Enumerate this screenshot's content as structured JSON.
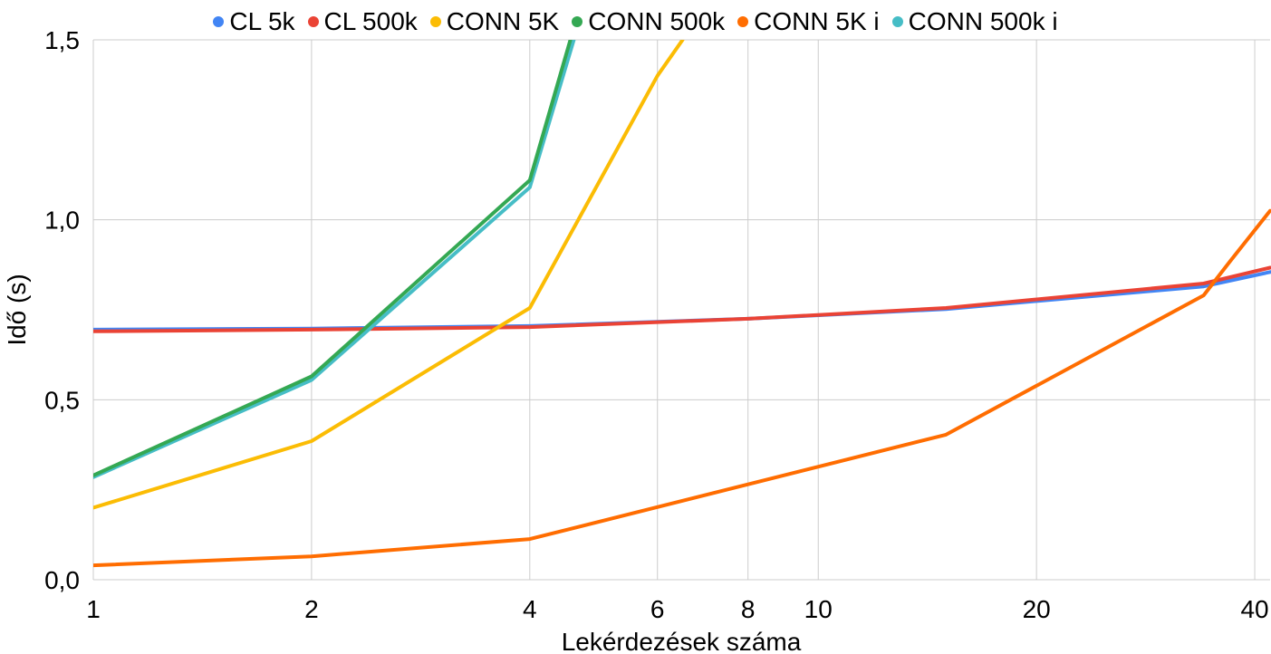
{
  "chart_data": {
    "type": "line",
    "title": "",
    "xlabel": "Lekérdezések száma",
    "ylabel": "Idő (s)",
    "xscale": "log",
    "xlim": [
      1,
      42
    ],
    "ylim": [
      0,
      1.5
    ],
    "grid": true,
    "legend_position": "top",
    "x_ticks": [
      1,
      2,
      4,
      6,
      8,
      10,
      20,
      40
    ],
    "x_tick_labels": [
      "1",
      "2",
      "4",
      "6",
      "8",
      "10",
      "20",
      "40"
    ],
    "y_ticks": [
      0,
      0.5,
      1.0,
      1.5
    ],
    "y_tick_labels": [
      "0,0",
      "0,5",
      "1,0",
      "1,5"
    ],
    "series": [
      {
        "name": "CL 5k",
        "color": "#4285F4",
        "points": [
          [
            1,
            0.695
          ],
          [
            2,
            0.698
          ],
          [
            4,
            0.705
          ],
          [
            8,
            0.725
          ],
          [
            15,
            0.752
          ],
          [
            34,
            0.815
          ],
          [
            42,
            0.855
          ]
        ]
      },
      {
        "name": "CL 500k",
        "color": "#EA4335",
        "points": [
          [
            1,
            0.69
          ],
          [
            2,
            0.695
          ],
          [
            4,
            0.702
          ],
          [
            8,
            0.725
          ],
          [
            15,
            0.755
          ],
          [
            34,
            0.823
          ],
          [
            42,
            0.867
          ]
        ]
      },
      {
        "name": "CONN 5K",
        "color": "#FBBC04",
        "points": [
          [
            1,
            0.2
          ],
          [
            2,
            0.385
          ],
          [
            4,
            0.755
          ],
          [
            6,
            1.4
          ],
          [
            6.5,
            1.5
          ]
        ]
      },
      {
        "name": "CONN 500k",
        "color": "#34A853",
        "points": [
          [
            1,
            0.29
          ],
          [
            2,
            0.565
          ],
          [
            4,
            1.11
          ],
          [
            4.55,
            1.5
          ]
        ]
      },
      {
        "name": "CONN 5K i",
        "color": "#FF6D01",
        "points": [
          [
            1,
            0.04
          ],
          [
            2,
            0.065
          ],
          [
            4,
            0.113
          ],
          [
            15,
            0.403
          ],
          [
            34,
            0.79
          ],
          [
            37,
            0.885
          ],
          [
            42,
            1.025
          ]
        ]
      },
      {
        "name": "CONN 500k i",
        "color": "#46BDC6",
        "points": [
          [
            1,
            0.285
          ],
          [
            2,
            0.555
          ],
          [
            4,
            1.09
          ],
          [
            4.6,
            1.5
          ]
        ]
      }
    ]
  }
}
